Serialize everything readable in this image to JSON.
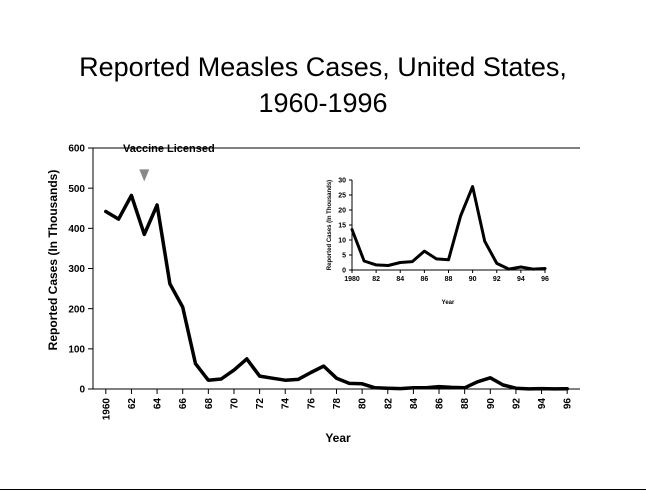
{
  "title_line1": "Reported Measles Cases, United States,",
  "title_line2": "1960-1996",
  "chart_data": [
    {
      "type": "line",
      "xlabel": "Year",
      "ylabel": "Reported Cases (In Thousands)",
      "ylim": [
        0,
        600
      ],
      "yticks": [
        "0",
        "100",
        "200",
        "300",
        "400",
        "500",
        "600"
      ],
      "xlim": [
        1959,
        1997
      ],
      "xticks": [
        {
          "year": 1960,
          "label": "1960"
        },
        {
          "year": 1962,
          "label": "62"
        },
        {
          "year": 1964,
          "label": "64"
        },
        {
          "year": 1966,
          "label": "66"
        },
        {
          "year": 1968,
          "label": "68"
        },
        {
          "year": 1970,
          "label": "70"
        },
        {
          "year": 1972,
          "label": "72"
        },
        {
          "year": 1974,
          "label": "74"
        },
        {
          "year": 1976,
          "label": "76"
        },
        {
          "year": 1978,
          "label": "78"
        },
        {
          "year": 1980,
          "label": "80"
        },
        {
          "year": 1982,
          "label": "82"
        },
        {
          "year": 1984,
          "label": "84"
        },
        {
          "year": 1986,
          "label": "86"
        },
        {
          "year": 1988,
          "label": "88"
        },
        {
          "year": 1990,
          "label": "90"
        },
        {
          "year": 1992,
          "label": "92"
        },
        {
          "year": 1994,
          "label": "94"
        },
        {
          "year": 1996,
          "label": "96"
        }
      ],
      "x": [
        1960,
        1961,
        1962,
        1963,
        1964,
        1965,
        1966,
        1967,
        1968,
        1969,
        1970,
        1971,
        1972,
        1973,
        1974,
        1975,
        1976,
        1977,
        1978,
        1979,
        1980,
        1981,
        1982,
        1983,
        1984,
        1985,
        1986,
        1987,
        1988,
        1989,
        1990,
        1991,
        1992,
        1993,
        1994,
        1995,
        1996
      ],
      "values": [
        442,
        423,
        482,
        385,
        458,
        262,
        204,
        63,
        22,
        25,
        47,
        75,
        32,
        27,
        22,
        24,
        41,
        57,
        27,
        14,
        13,
        3,
        2,
        1,
        3,
        3,
        6,
        4,
        3,
        18,
        28,
        10,
        2,
        0.3,
        1,
        0.3,
        0.5
      ],
      "annotation": {
        "label": "Vaccine Licensed",
        "year": 1963,
        "color": "#888888"
      },
      "grid": false
    },
    {
      "type": "line",
      "xlabel": "Year",
      "ylabel": "Reported Cases (In Thousands)",
      "ylim": [
        0,
        30
      ],
      "yticks": [
        "0",
        "5",
        "10",
        "15",
        "20",
        "25",
        "30"
      ],
      "xlim": [
        1980,
        1996
      ],
      "xticks": [
        {
          "year": 1980,
          "label": "1980"
        },
        {
          "year": 1982,
          "label": "82"
        },
        {
          "year": 1984,
          "label": "84"
        },
        {
          "year": 1986,
          "label": "86"
        },
        {
          "year": 1988,
          "label": "88"
        },
        {
          "year": 1990,
          "label": "90"
        },
        {
          "year": 1992,
          "label": "92"
        },
        {
          "year": 1994,
          "label": "94"
        },
        {
          "year": 1996,
          "label": "96"
        }
      ],
      "x": [
        1980,
        1981,
        1982,
        1983,
        1984,
        1985,
        1986,
        1987,
        1988,
        1989,
        1990,
        1991,
        1992,
        1993,
        1994,
        1995,
        1996
      ],
      "values": [
        13.5,
        3,
        1.7,
        1.5,
        2.5,
        2.8,
        6.3,
        3.7,
        3.4,
        18,
        27.8,
        9.6,
        2.2,
        0.3,
        1,
        0.3,
        0.5
      ],
      "grid": false
    }
  ]
}
